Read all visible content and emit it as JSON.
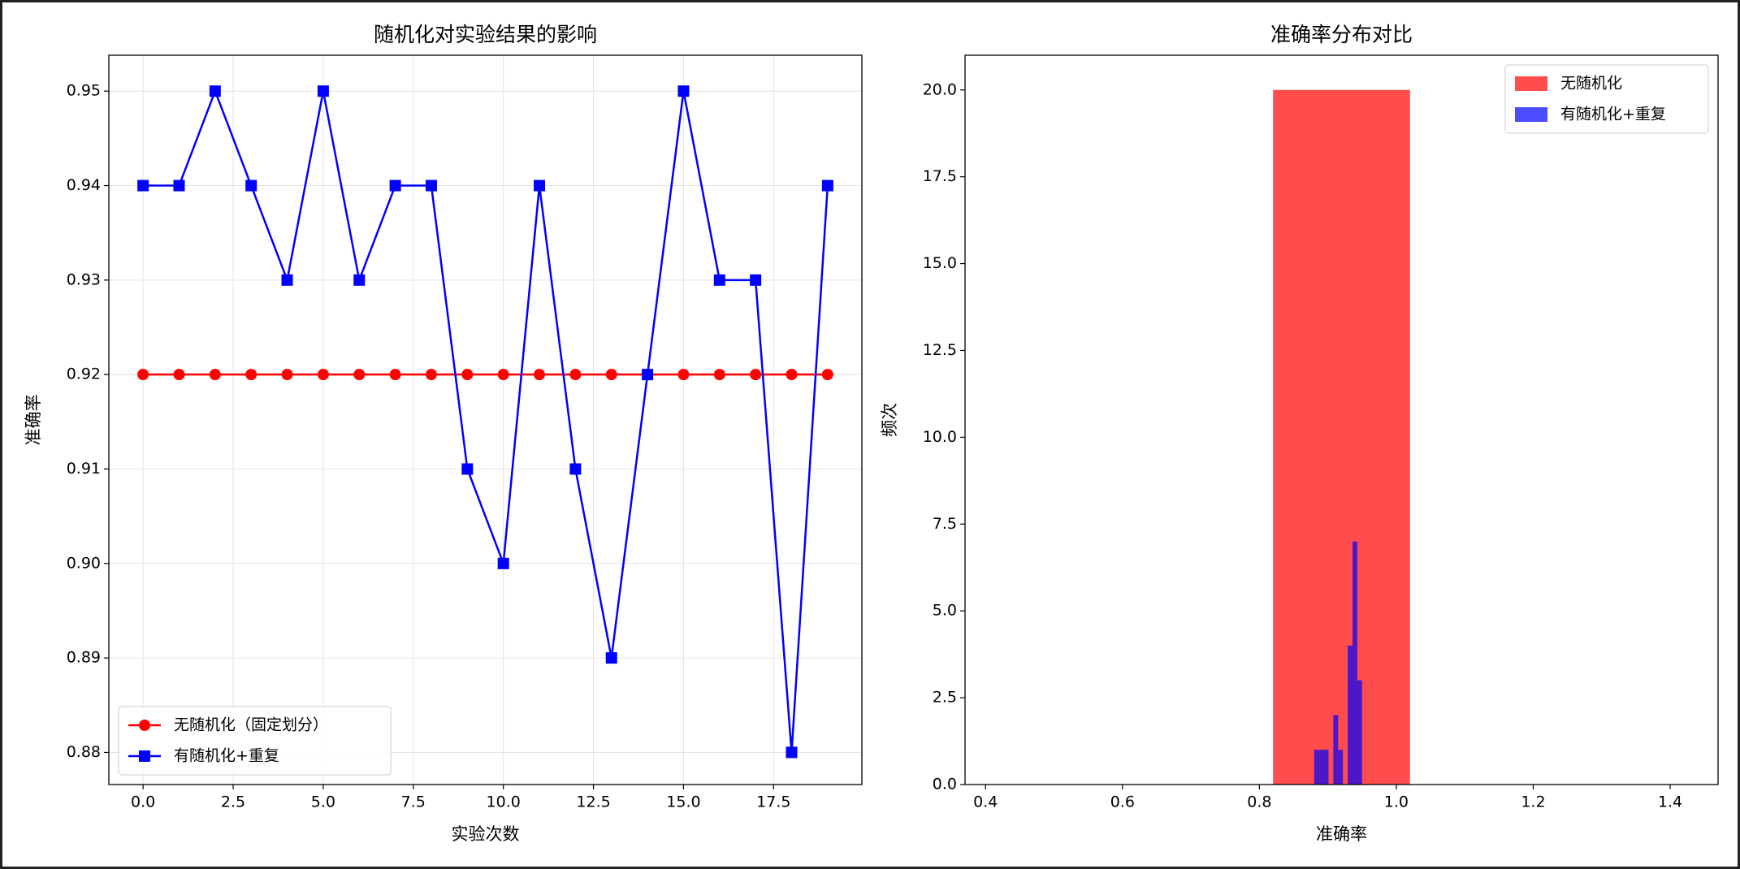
{
  "chart_data": [
    {
      "type": "line",
      "title": "随机化对实验结果的影响",
      "xlabel": "实验次数",
      "ylabel": "准确率",
      "x": [
        0,
        1,
        2,
        3,
        4,
        5,
        6,
        7,
        8,
        9,
        10,
        11,
        12,
        13,
        14,
        15,
        16,
        17,
        18,
        19
      ],
      "series": [
        {
          "name": "无随机化（固定划分）",
          "color": "#ff0000",
          "marker": "circle",
          "values": [
            0.92,
            0.92,
            0.92,
            0.92,
            0.92,
            0.92,
            0.92,
            0.92,
            0.92,
            0.92,
            0.92,
            0.92,
            0.92,
            0.92,
            0.92,
            0.92,
            0.92,
            0.92,
            0.92,
            0.92
          ]
        },
        {
          "name": "有随机化+重复",
          "color": "#0000ff",
          "marker": "square",
          "values": [
            0.94,
            0.94,
            0.95,
            0.94,
            0.93,
            0.95,
            0.93,
            0.94,
            0.94,
            0.91,
            0.9,
            0.94,
            0.91,
            0.89,
            0.92,
            0.95,
            0.93,
            0.93,
            0.88,
            0.94
          ]
        }
      ],
      "xlim": [
        -0.95,
        19.95
      ],
      "xticks": [
        {
          "value": 0,
          "label": "0.0"
        },
        2.5,
        {
          "value": 5,
          "label": "5.0"
        },
        7.5,
        {
          "value": 10,
          "label": "10.0"
        },
        12.5,
        {
          "value": 15,
          "label": "15.0"
        },
        17.5
      ],
      "ylim": [
        0.8766,
        0.9538
      ],
      "yticks": [
        0.88,
        0.89,
        {
          "value": 0.9,
          "label": "0.90"
        },
        0.91,
        0.92,
        0.93,
        0.94,
        0.95
      ],
      "grid": true,
      "legend": "lower left"
    },
    {
      "type": "histogram",
      "title": "准确率分布对比",
      "xlabel": "准确率",
      "ylabel": "频次",
      "series": [
        {
          "name": "无随机化",
          "color": "#ff0000",
          "alpha": 0.7,
          "bins": [
            0.42,
            0.62,
            0.82,
            1.02,
            1.22,
            1.42
          ],
          "counts": [
            0,
            0,
            20,
            0,
            0
          ]
        },
        {
          "name": "有随机化+重复",
          "color": "#0000ff",
          "alpha": 0.7,
          "bins": [
            0.88,
            0.887,
            0.894,
            0.901,
            0.908,
            0.915,
            0.922,
            0.929,
            0.936,
            0.943,
            0.95
          ],
          "counts": [
            1,
            1,
            1,
            0,
            2,
            1,
            0,
            4,
            7,
            3
          ]
        }
      ],
      "xlim": [
        0.37,
        1.47
      ],
      "xticks": [
        0.4,
        0.6,
        0.8,
        {
          "value": 1,
          "label": "1.0"
        },
        1.2,
        1.4
      ],
      "ylim": [
        0,
        21
      ],
      "yticks": [
        {
          "value": 0,
          "label": "0.0"
        },
        2.5,
        {
          "value": 5,
          "label": "5.0"
        },
        7.5,
        {
          "value": 10,
          "label": "10.0"
        },
        12.5,
        {
          "value": 15,
          "label": "15.0"
        },
        17.5,
        {
          "value": 20,
          "label": "20.0"
        }
      ],
      "grid": false,
      "legend": "upper right"
    }
  ]
}
